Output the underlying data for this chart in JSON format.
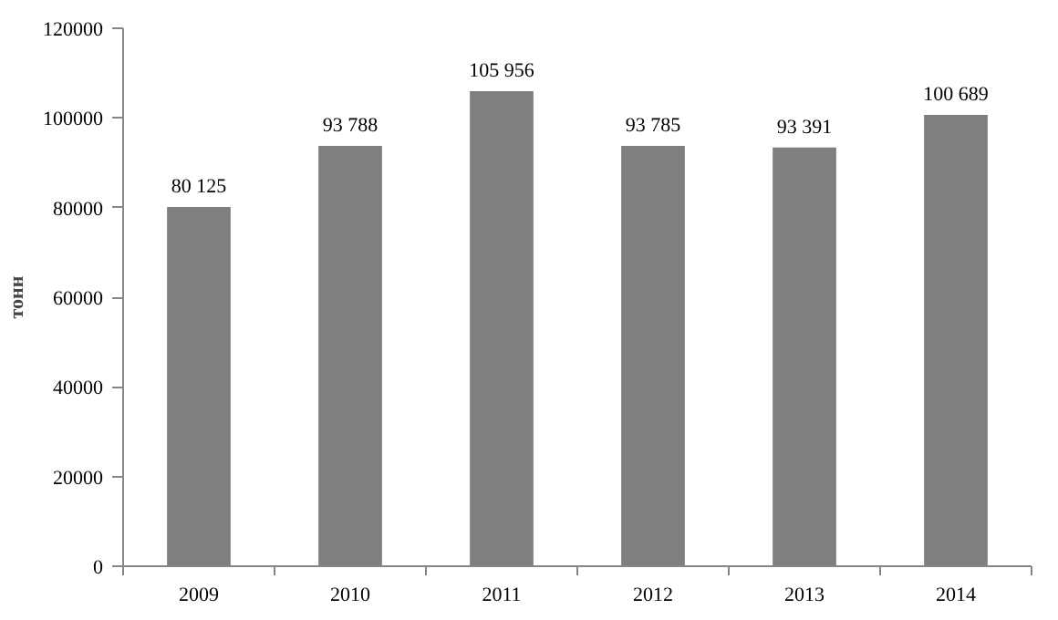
{
  "chart_data": {
    "type": "bar",
    "ylabel": "тонн",
    "categories": [
      "2009",
      "2010",
      "2011",
      "2012",
      "2013",
      "2014"
    ],
    "values": [
      80125,
      93788,
      105956,
      93785,
      93391,
      100689
    ],
    "value_labels": [
      "80 125",
      "93 788",
      "105 956",
      "93 785",
      "93 391",
      "100 689"
    ],
    "color": "#7f7f7f",
    "ylim": [
      0,
      120000
    ],
    "yticks": [
      0,
      20000,
      40000,
      60000,
      80000,
      100000,
      120000
    ],
    "grid": false
  }
}
